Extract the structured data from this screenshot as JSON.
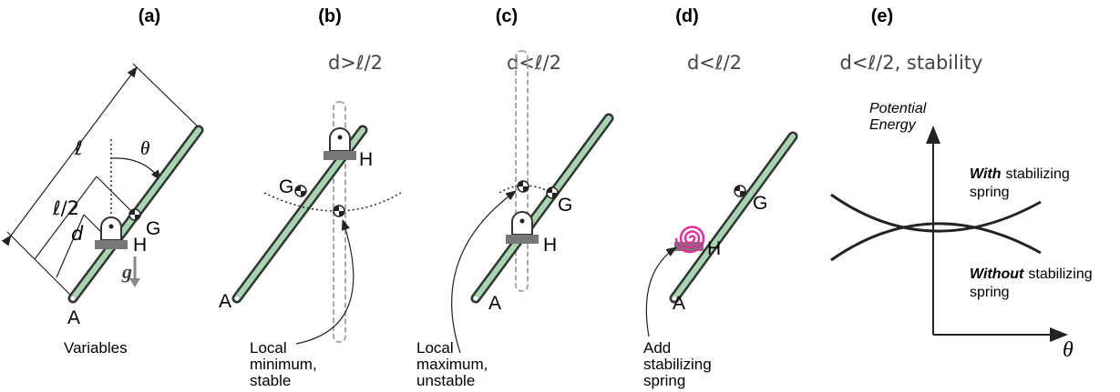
{
  "panels": [
    {
      "label": "(a)",
      "points": [
        "A",
        "G",
        "H"
      ],
      "dims": [
        "ℓ",
        "ℓ/2",
        "d"
      ],
      "angle": "θ",
      "gravity": "g",
      "caption": [
        "Variables"
      ]
    },
    {
      "label": "(b)",
      "subtitle": "d>ℓ/2",
      "points": [
        "A",
        "G",
        "H"
      ],
      "caption": [
        "Local",
        "minimum,",
        "stable"
      ]
    },
    {
      "label": "(c)",
      "subtitle": "d<ℓ/2",
      "points": [
        "A",
        "G",
        "H"
      ],
      "caption": [
        "Local",
        "maximum,",
        "unstable"
      ]
    },
    {
      "label": "(d)",
      "subtitle": "d<ℓ/2",
      "points": [
        "A",
        "G",
        "H"
      ],
      "caption": [
        "Add",
        "stabilizing",
        "spring"
      ]
    },
    {
      "label": "(e)",
      "subtitle": "d<ℓ/2, stability",
      "y_axis": [
        "Potential",
        "Energy"
      ],
      "x_axis": "θ",
      "curves": [
        {
          "emphasis": "With",
          "text": "stabilizing",
          "line2": "spring"
        },
        {
          "emphasis": "Without",
          "text": "stabilizing",
          "line2": "spring"
        }
      ]
    }
  ]
}
